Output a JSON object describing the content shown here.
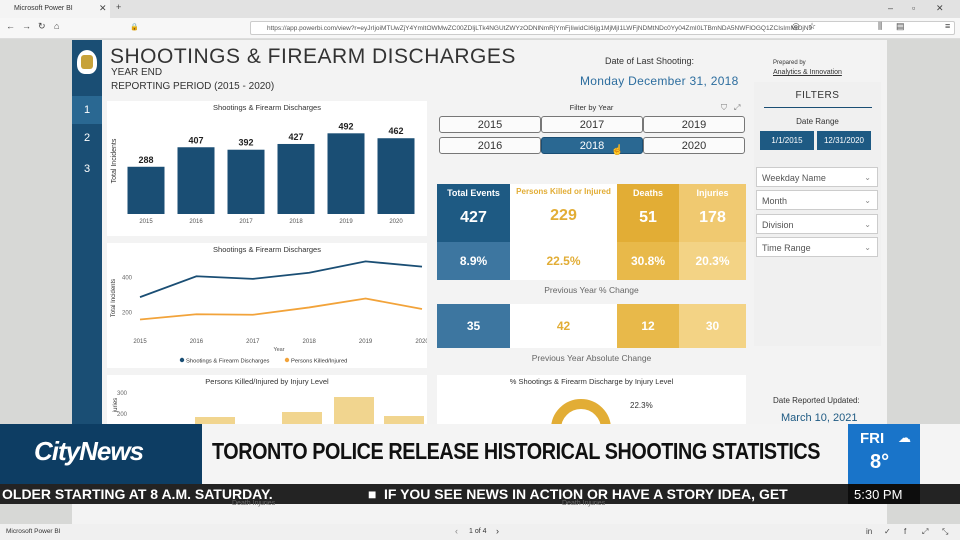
{
  "browser": {
    "tab_title": "Microsoft Power BI",
    "url": "https://app.powerbi.com/view?r=eyJrIjoiMTUwZjY4YmItOWMwZC00ZDljLTk4NGUtZWYzODNlNmRjYmFjIiwidCI6Ijg1MjMjI1LWFjNDMtNDc0Yy04ZmI0LTBmNDA5NWFlOGQ1ZCIsImMiOjN9"
  },
  "report": {
    "title": "SHOOTINGS & FIREARM DISCHARGES",
    "subtitle_line1": "YEAR END",
    "subtitle_line2": "REPORTING PERIOD (2015 - 2020)",
    "date_last_label": "Date of Last Shooting:",
    "date_last_value": "Monday December 31, 2018",
    "prepared_by": "Prepared by",
    "prepared_org": "Analytics & Innovation",
    "pages": [
      "1",
      "2",
      "3"
    ]
  },
  "bar_chart": {
    "title": "Shootings & Firearm Discharges",
    "ylabel": "Total Incidents"
  },
  "line_chart": {
    "title": "Shootings & Firearm Discharges",
    "xlabel": "Year",
    "ylabel": "Total Incidents",
    "legend": [
      "Shootings & Firearm Discharges",
      "Persons Killed/Injured"
    ]
  },
  "bottom_left": {
    "title": "Persons Killed/Injured by Injury Level",
    "ylabel_fragment": "juries"
  },
  "bottom_right": {
    "title": "% Shootings & Firearm Discharge by Injury Level",
    "pct": "22.3%"
  },
  "filter_year": {
    "title": "Filter by Year",
    "years": [
      "2015",
      "2017",
      "2019",
      "2016",
      "2018",
      "2020"
    ],
    "selected": "2018"
  },
  "kpis": {
    "headers": [
      "Total Events",
      "Persons Killed or Injured",
      "Deaths",
      "Injuries"
    ],
    "values": [
      "427",
      "229",
      "51",
      "178"
    ],
    "pct_change": [
      "8.9%",
      "22.5%",
      "30.8%",
      "20.3%"
    ],
    "pct_label": "Previous Year % Change",
    "abs_change": [
      "35",
      "42",
      "12",
      "30"
    ],
    "abs_label": "Previous Year Absolute Change"
  },
  "filters": {
    "heading": "FILTERS",
    "date_range_label": "Date Range",
    "date_from": "1/1/2015",
    "date_to": "12/31/2020",
    "dropdowns": [
      "Weekday Name",
      "Month",
      "Division",
      "Time Range"
    ],
    "updated_label": "Date Reported Updated:",
    "updated_value": "March 10, 2021"
  },
  "news": {
    "brand": "CityNews",
    "headline": "TORONTO POLICE RELEASE HISTORICAL SHOOTING STATISTICS",
    "ticker_left": "OLDER STARTING AT 8 A.M. SATURDAY.",
    "ticker_right": "IF YOU SEE NEWS IN ACTION OR HAVE A STORY IDEA, GET",
    "weather_day": "FRI",
    "weather_temp": "8°",
    "time": "5:30 PM"
  },
  "footer": {
    "app": "Microsoft Power BI",
    "page_indicator": "1 of 4",
    "legend_fragment": "Death   Injuries"
  },
  "colors": {
    "navy": "#1a4e74",
    "gold": "#e2ad35",
    "orange": "#f2a33a",
    "news_blue": "#0d3d63",
    "weather_blue": "#1974c9"
  },
  "chart_data": [
    {
      "type": "bar",
      "title": "Shootings & Firearm Discharges",
      "ylabel": "Total Incidents",
      "categories": [
        "2015",
        "2016",
        "2017",
        "2018",
        "2019",
        "2020"
      ],
      "values": [
        288,
        407,
        392,
        427,
        492,
        462
      ]
    },
    {
      "type": "line",
      "title": "Shootings & Firearm Discharges",
      "xlabel": "Year",
      "ylabel": "Total Incidents",
      "x": [
        "2015",
        "2016",
        "2017",
        "2018",
        "2019",
        "2020"
      ],
      "ylim": [
        100,
        500
      ],
      "yticks": [
        200,
        400
      ],
      "series": [
        {
          "name": "Shootings & Firearm Discharges",
          "values": [
            288,
            407,
            392,
            427,
            492,
            462
          ]
        },
        {
          "name": "Persons Killed/Injured",
          "values": [
            160,
            190,
            187,
            229,
            280,
            220
          ]
        }
      ]
    }
  ]
}
